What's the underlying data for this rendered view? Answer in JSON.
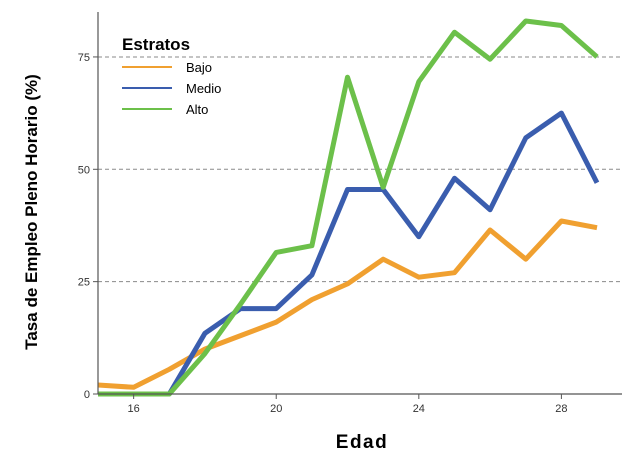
{
  "chart_data": {
    "type": "line",
    "title": "",
    "xlabel": "Edad",
    "ylabel": "Tasa de Empleo Pleno Horario (%)",
    "xlim": [
      15,
      29.7
    ],
    "ylim": [
      0,
      85
    ],
    "x_ticks": [
      16,
      20,
      24,
      28
    ],
    "y_ticks": [
      0,
      25,
      50,
      75
    ],
    "grid": "horizontal-dashed",
    "legend": {
      "title": "Estratos",
      "placement": "top-left"
    },
    "x": [
      15,
      16,
      17,
      18,
      19,
      20,
      21,
      22,
      23,
      24,
      25,
      26,
      27,
      28,
      29
    ],
    "series": [
      {
        "name": "Bajo",
        "color": "#F0A030",
        "values": [
          2,
          1.5,
          5.5,
          10,
          13,
          16,
          21,
          24.5,
          30,
          26,
          27,
          36.5,
          30,
          38.5,
          37
        ]
      },
      {
        "name": "Medio",
        "color": "#3A5DAE",
        "values": [
          0,
          0,
          0,
          13.5,
          19,
          19,
          26.5,
          45.5,
          45.5,
          35,
          48,
          41,
          57,
          62.5,
          47
        ]
      },
      {
        "name": "Alto",
        "color": "#6CC04A",
        "values": [
          0,
          0,
          0,
          9,
          20,
          31.5,
          33,
          70.5,
          46,
          69.5,
          80.5,
          74.5,
          83,
          82,
          75
        ]
      }
    ]
  }
}
